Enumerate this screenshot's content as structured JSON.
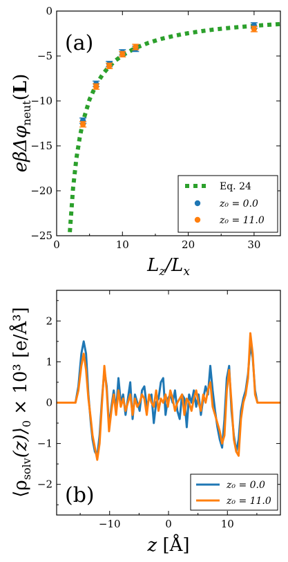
{
  "charts": [
    {
      "type": "scatter",
      "panel_label": "(a)",
      "xlabel": "L_z/L_x",
      "ylabel": "eβΔφ_neut(L)",
      "xlim": [
        0,
        34
      ],
      "ylim": [
        -25,
        0
      ],
      "xticks": [
        0,
        10,
        20,
        30
      ],
      "yticks": [
        0,
        -5,
        -10,
        -15,
        -20,
        -25
      ],
      "tick_labels": {
        "x": [
          "0",
          "10",
          "20",
          "30"
        ],
        "y": [
          "0",
          "−5",
          "−10",
          "−15",
          "−20",
          "−25"
        ]
      },
      "legend": {
        "position": "lower-right",
        "entries": [
          "Eq. 24",
          "z₀ = 0.0",
          "z₀ = 11.0"
        ]
      },
      "series": [
        {
          "name": "Eq. 24",
          "style": "dotted-line",
          "color": "#2ca02c",
          "x": [
            2,
            2.5,
            3,
            3.5,
            4,
            5,
            6,
            7,
            8,
            9,
            10,
            12,
            14,
            16,
            18,
            20,
            22,
            24,
            26,
            28,
            30,
            32,
            34
          ],
          "y": [
            -24.6,
            -19.7,
            -16.4,
            -14.1,
            -12.3,
            -9.85,
            -8.2,
            -7.03,
            -6.15,
            -5.47,
            -4.92,
            -4.1,
            -3.52,
            -3.08,
            -2.73,
            -2.46,
            -2.24,
            -2.05,
            -1.89,
            -1.76,
            -1.64,
            -1.54,
            -1.45
          ]
        },
        {
          "name": "z₀ = 0.0",
          "style": "marker-errorbar",
          "color": "#1f77b4",
          "x": [
            4,
            6,
            8,
            10,
            12,
            30
          ],
          "y": [
            -12.2,
            -8.1,
            -5.9,
            -4.6,
            -4.2,
            -1.6
          ],
          "err": [
            0.3,
            0.3,
            0.3,
            0.3,
            0.3,
            0.3
          ]
        },
        {
          "name": "z₀ = 11.0",
          "style": "marker-errorbar",
          "color": "#ff7f0e",
          "x": [
            4,
            6,
            8,
            10,
            12,
            30
          ],
          "y": [
            -12.6,
            -8.4,
            -6.1,
            -4.8,
            -4.0,
            -2.0
          ],
          "err": [
            0.3,
            0.3,
            0.3,
            0.3,
            0.3,
            0.3
          ]
        }
      ]
    },
    {
      "type": "line",
      "panel_label": "(b)",
      "xlabel": "z [Å]",
      "ylabel": "⟨ρ_solv(z)⟩₀ × 10³ [e/Å³]",
      "xlim": [
        -19,
        19
      ],
      "ylim": [
        -2.75,
        2.75
      ],
      "xticks": [
        -10,
        0,
        10
      ],
      "yticks": [
        2,
        1,
        0,
        -1,
        -2
      ],
      "tick_labels": {
        "x": [
          "−10",
          "0",
          "10"
        ],
        "y": [
          "2",
          "1",
          "0",
          "−1",
          "−2"
        ]
      },
      "legend": {
        "position": "lower-right",
        "entries": [
          "z₀ = 0.0",
          "z₀ = 11.0"
        ]
      },
      "series": [
        {
          "name": "z₀ = 0.0",
          "color": "#1f77b4",
          "x": [
            -19,
            -15.8,
            -15.3,
            -14.8,
            -14.4,
            -14.0,
            -13.6,
            -13.2,
            -12.9,
            -12.5,
            -12.1,
            -11.7,
            -11.3,
            -10.9,
            -10.5,
            -10.1,
            -9.7,
            -9.3,
            -8.9,
            -8.5,
            -8.1,
            -7.7,
            -7.3,
            -6.9,
            -6.5,
            -6.1,
            -5.7,
            -5.3,
            -4.9,
            -4.5,
            -4.1,
            -3.7,
            -3.3,
            -2.9,
            -2.5,
            -2.1,
            -1.7,
            -1.3,
            -0.9,
            -0.5,
            -0.1,
            0.3,
            0.7,
            1.1,
            1.5,
            1.9,
            2.3,
            2.7,
            3.1,
            3.5,
            3.9,
            4.3,
            4.7,
            5.1,
            5.5,
            5.9,
            6.3,
            6.7,
            7.1,
            7.5,
            7.9,
            8.3,
            8.7,
            9.1,
            9.5,
            9.9,
            10.3,
            10.7,
            11.1,
            11.5,
            11.9,
            12.3,
            12.7,
            13.1,
            13.5,
            13.9,
            14.3,
            14.7,
            15.1,
            15.5,
            16.0,
            19
          ],
          "y": [
            0,
            0,
            0.4,
            1.2,
            1.5,
            1.2,
            0.2,
            -0.5,
            -0.9,
            -1.2,
            -1.3,
            -0.8,
            0.1,
            0.8,
            0.4,
            -0.6,
            -0.1,
            0.3,
            -0.2,
            0.6,
            0.0,
            0.2,
            -0.3,
            0.1,
            0.5,
            -0.4,
            0.2,
            0.0,
            -0.2,
            0.3,
            0.4,
            -0.1,
            0.1,
            0.2,
            -0.5,
            0.0,
            0.1,
            0.5,
            0.6,
            -0.3,
            0.1,
            0.2,
            0.0,
            0.3,
            -0.2,
            -0.4,
            0.2,
            0.1,
            -0.6,
            0.2,
            0.0,
            0.3,
            -0.1,
            0.2,
            -0.3,
            0.1,
            0.4,
            0.2,
            0.9,
            0.3,
            -0.2,
            -0.6,
            -0.9,
            -1.1,
            -0.4,
            0.6,
            0.9,
            -0.2,
            -0.8,
            -1.2,
            -0.9,
            -0.2,
            0.1,
            0.3,
            0.7,
            1.4,
            1.1,
            0.3,
            0.0,
            0,
            0,
            0
          ]
        },
        {
          "name": "z₀ = 11.0",
          "color": "#ff7f0e",
          "x": [
            -19,
            -15.8,
            -15.3,
            -14.8,
            -14.4,
            -14.0,
            -13.6,
            -13.2,
            -12.9,
            -12.5,
            -12.1,
            -11.7,
            -11.3,
            -10.9,
            -10.5,
            -10.1,
            -9.7,
            -9.3,
            -8.9,
            -8.5,
            -8.1,
            -7.7,
            -7.3,
            -6.9,
            -6.5,
            -6.1,
            -5.7,
            -5.3,
            -4.9,
            -4.5,
            -4.1,
            -3.7,
            -3.3,
            -2.9,
            -2.5,
            -2.1,
            -1.7,
            -1.3,
            -0.9,
            -0.5,
            -0.1,
            0.3,
            0.7,
            1.1,
            1.5,
            1.9,
            2.3,
            2.7,
            3.1,
            3.5,
            3.9,
            4.3,
            4.7,
            5.1,
            5.5,
            5.9,
            6.3,
            6.7,
            7.1,
            7.5,
            7.9,
            8.3,
            8.7,
            9.1,
            9.5,
            9.9,
            10.3,
            10.7,
            11.1,
            11.5,
            11.9,
            12.3,
            12.7,
            13.1,
            13.5,
            13.9,
            14.3,
            14.7,
            15.1,
            15.5,
            16.0,
            19
          ],
          "y": [
            0,
            0,
            0.3,
            0.9,
            1.2,
            0.8,
            0.1,
            -0.4,
            -0.8,
            -1.1,
            -1.4,
            -1.0,
            0.0,
            0.9,
            0.3,
            -0.7,
            -0.2,
            0.2,
            -0.3,
            0.3,
            -0.1,
            0.1,
            -0.2,
            0.0,
            0.2,
            -0.3,
            0.1,
            -0.1,
            0.0,
            0.2,
            0.1,
            -0.3,
            0.2,
            0.0,
            -0.1,
            0.3,
            -0.2,
            0.1,
            0.0,
            0.2,
            -0.1,
            0.3,
            0.1,
            -0.2,
            0.0,
            0.1,
            0.2,
            -0.3,
            0.1,
            0.0,
            -0.2,
            0.1,
            0.3,
            0.0,
            -0.2,
            0.2,
            0.0,
            0.3,
            0.5,
            -0.1,
            -0.3,
            -0.5,
            -0.7,
            -1.0,
            -0.8,
            0.3,
            0.8,
            0.0,
            -0.9,
            -1.2,
            -1.3,
            -0.4,
            0.0,
            0.2,
            0.6,
            1.7,
            1.2,
            0.2,
            0.0,
            0,
            0,
            0
          ]
        }
      ]
    }
  ]
}
